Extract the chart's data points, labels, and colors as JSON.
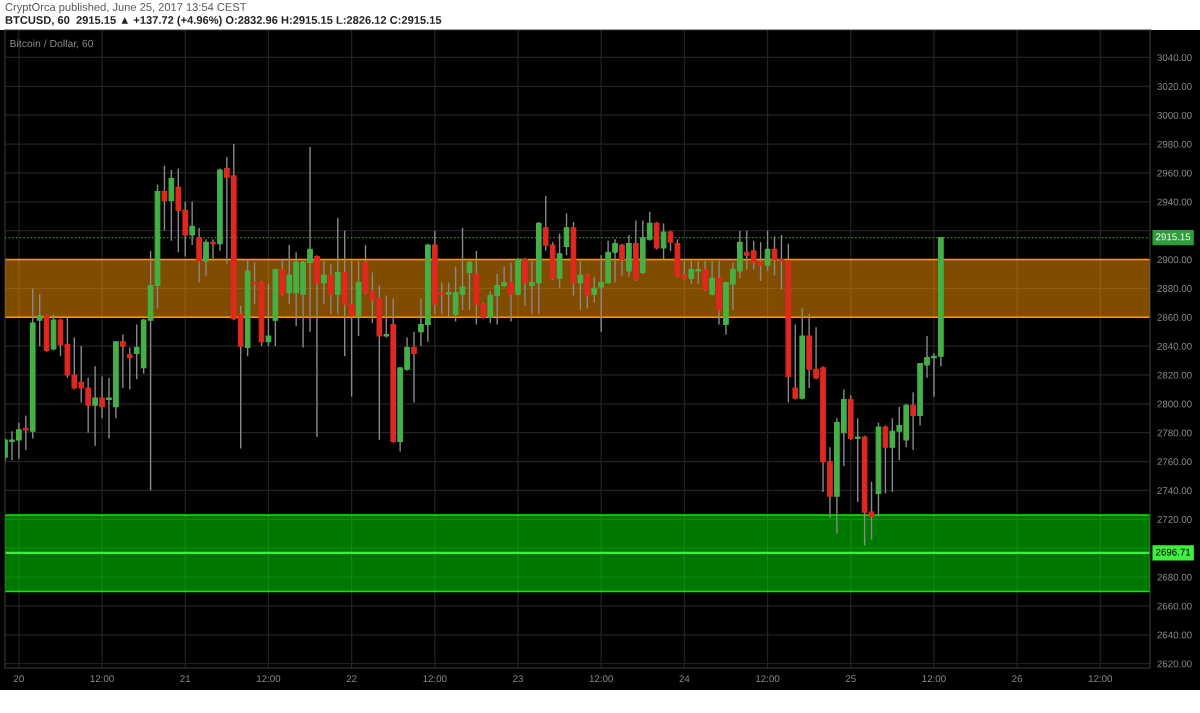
{
  "chart_data": {
    "type": "candlestick",
    "title": "Bitcoin / Dollar, 60",
    "subtitle": "BTCUSD, 60  2915.15 ▲ +137.72 (+4.96%) O:2832.96 H:2915.15 L:2826.12 C:2915.15",
    "annotations": [
      "CryptOrca published, June 25, 2017 13:54 CEST"
    ],
    "x": [
      "2017-06-19T22:00",
      "2017-06-19T23:00",
      "2017-06-20T00:00",
      "2017-06-20T01:00",
      "2017-06-20T02:00",
      "2017-06-20T03:00",
      "2017-06-20T04:00",
      "2017-06-20T05:00",
      "2017-06-20T06:00",
      "2017-06-20T07:00",
      "2017-06-20T08:00",
      "2017-06-20T09:00",
      "2017-06-20T10:00",
      "2017-06-20T11:00",
      "2017-06-20T12:00",
      "2017-06-20T13:00",
      "2017-06-20T14:00",
      "2017-06-20T15:00",
      "2017-06-20T16:00",
      "2017-06-20T17:00",
      "2017-06-20T18:00",
      "2017-06-20T19:00",
      "2017-06-20T20:00",
      "2017-06-20T21:00",
      "2017-06-20T22:00",
      "2017-06-20T23:00",
      "2017-06-21T00:00",
      "2017-06-21T01:00",
      "2017-06-21T02:00",
      "2017-06-21T03:00",
      "2017-06-21T04:00",
      "2017-06-21T05:00",
      "2017-06-21T06:00",
      "2017-06-21T07:00",
      "2017-06-21T08:00",
      "2017-06-21T09:00",
      "2017-06-21T10:00",
      "2017-06-21T11:00",
      "2017-06-21T12:00",
      "2017-06-21T13:00",
      "2017-06-21T14:00",
      "2017-06-21T15:00",
      "2017-06-21T16:00",
      "2017-06-21T17:00",
      "2017-06-21T18:00",
      "2017-06-21T19:00",
      "2017-06-21T20:00",
      "2017-06-21T21:00",
      "2017-06-21T22:00",
      "2017-06-21T23:00",
      "2017-06-22T00:00",
      "2017-06-22T01:00",
      "2017-06-22T02:00",
      "2017-06-22T03:00",
      "2017-06-22T04:00",
      "2017-06-22T05:00",
      "2017-06-22T06:00",
      "2017-06-22T07:00",
      "2017-06-22T08:00",
      "2017-06-22T09:00",
      "2017-06-22T10:00",
      "2017-06-22T11:00",
      "2017-06-22T12:00",
      "2017-06-22T13:00",
      "2017-06-22T14:00",
      "2017-06-22T15:00",
      "2017-06-22T16:00",
      "2017-06-22T17:00",
      "2017-06-22T18:00",
      "2017-06-22T19:00",
      "2017-06-22T20:00",
      "2017-06-22T21:00",
      "2017-06-22T22:00",
      "2017-06-22T23:00",
      "2017-06-23T00:00",
      "2017-06-23T01:00",
      "2017-06-23T02:00",
      "2017-06-23T03:00",
      "2017-06-23T04:00",
      "2017-06-23T05:00",
      "2017-06-23T06:00",
      "2017-06-23T07:00",
      "2017-06-23T08:00",
      "2017-06-23T09:00",
      "2017-06-23T10:00",
      "2017-06-23T11:00",
      "2017-06-23T12:00",
      "2017-06-23T13:00",
      "2017-06-23T14:00",
      "2017-06-23T15:00",
      "2017-06-23T16:00",
      "2017-06-23T17:00",
      "2017-06-23T18:00",
      "2017-06-23T19:00",
      "2017-06-23T20:00",
      "2017-06-23T21:00",
      "2017-06-23T22:00",
      "2017-06-23T23:00",
      "2017-06-24T00:00",
      "2017-06-24T01:00",
      "2017-06-24T02:00",
      "2017-06-24T03:00",
      "2017-06-24T04:00",
      "2017-06-24T05:00",
      "2017-06-24T06:00",
      "2017-06-24T07:00",
      "2017-06-24T08:00",
      "2017-06-24T09:00",
      "2017-06-24T10:00",
      "2017-06-24T11:00",
      "2017-06-24T12:00",
      "2017-06-24T13:00",
      "2017-06-24T14:00",
      "2017-06-24T15:00",
      "2017-06-24T16:00",
      "2017-06-24T17:00",
      "2017-06-24T18:00",
      "2017-06-24T19:00",
      "2017-06-24T20:00",
      "2017-06-24T21:00",
      "2017-06-24T22:00",
      "2017-06-24T23:00",
      "2017-06-25T00:00",
      "2017-06-25T01:00",
      "2017-06-25T02:00",
      "2017-06-25T03:00",
      "2017-06-25T04:00",
      "2017-06-25T05:00",
      "2017-06-25T06:00",
      "2017-06-25T07:00",
      "2017-06-25T08:00",
      "2017-06-25T09:00",
      "2017-06-25T10:00",
      "2017-06-25T11:00",
      "2017-06-25T12:00",
      "2017-06-25T13:00"
    ],
    "ohlc": [
      [
        2763,
        2776,
        2760,
        2775
      ],
      [
        2774,
        2781,
        2761,
        2775
      ],
      [
        2775,
        2787,
        2762,
        2782
      ],
      [
        2783,
        2792,
        2768,
        2782
      ],
      [
        2781,
        2880,
        2776,
        2856
      ],
      [
        2858,
        2876,
        2840,
        2861
      ],
      [
        2861,
        2862,
        2836,
        2837
      ],
      [
        2838,
        2862,
        2837,
        2858
      ],
      [
        2858,
        2859,
        2833,
        2841
      ],
      [
        2841,
        2860,
        2818,
        2820
      ],
      [
        2820,
        2846,
        2810,
        2811
      ],
      [
        2815,
        2840,
        2801,
        2811
      ],
      [
        2811,
        2818,
        2780,
        2799
      ],
      [
        2799,
        2826,
        2771,
        2804
      ],
      [
        2804,
        2819,
        2790,
        2798
      ],
      [
        2803,
        2818,
        2776,
        2804
      ],
      [
        2798,
        2843,
        2790,
        2843
      ],
      [
        2843,
        2848,
        2811,
        2840
      ],
      [
        2834,
        2839,
        2810,
        2832
      ],
      [
        2835,
        2855,
        2817,
        2839
      ],
      [
        2825,
        2859,
        2821,
        2858
      ],
      [
        2858,
        2906,
        2740,
        2882
      ],
      [
        2882,
        2952,
        2866,
        2947
      ],
      [
        2947,
        2965,
        2920,
        2941
      ],
      [
        2941,
        2962,
        2913,
        2956
      ],
      [
        2950,
        2963,
        2905,
        2934
      ],
      [
        2934,
        2940,
        2902,
        2917
      ],
      [
        2917,
        2940,
        2910,
        2923
      ],
      [
        2915,
        2922,
        2884,
        2899
      ],
      [
        2899,
        2914,
        2889,
        2912
      ],
      [
        2912,
        2914,
        2899,
        2911
      ],
      [
        2911,
        2963,
        2906,
        2962
      ],
      [
        2963,
        2971,
        2897,
        2957
      ],
      [
        2958,
        2980,
        2858,
        2859
      ],
      [
        2862,
        2868,
        2769,
        2840
      ],
      [
        2839,
        2900,
        2833,
        2892
      ],
      [
        2884,
        2898,
        2869,
        2883
      ],
      [
        2884,
        2885,
        2840,
        2843
      ],
      [
        2843,
        2883,
        2840,
        2847
      ],
      [
        2858,
        2893,
        2840,
        2893
      ],
      [
        2893,
        2900,
        2875,
        2876
      ],
      [
        2877,
        2910,
        2869,
        2889
      ],
      [
        2877,
        2905,
        2854,
        2898
      ],
      [
        2876,
        2899,
        2839,
        2898
      ],
      [
        2898,
        2978,
        2850,
        2907
      ],
      [
        2902,
        2903,
        2777,
        2884
      ],
      [
        2884,
        2899,
        2869,
        2889
      ],
      [
        2889,
        2897,
        2862,
        2876
      ],
      [
        2876,
        2929,
        2862,
        2891
      ],
      [
        2891,
        2920,
        2833,
        2869
      ],
      [
        2869,
        2899,
        2805,
        2861
      ],
      [
        2861,
        2899,
        2847,
        2884
      ],
      [
        2898,
        2910,
        2876,
        2877
      ],
      [
        2878,
        2891,
        2856,
        2872
      ],
      [
        2873,
        2882,
        2775,
        2847
      ],
      [
        2847,
        2875,
        2846,
        2848
      ],
      [
        2855,
        2873,
        2773,
        2774
      ],
      [
        2774,
        2825,
        2767,
        2825
      ],
      [
        2824,
        2846,
        2823,
        2839
      ],
      [
        2839,
        2850,
        2801,
        2835
      ],
      [
        2850,
        2873,
        2840,
        2855
      ],
      [
        2855,
        2911,
        2843,
        2910
      ],
      [
        2910,
        2920,
        2862,
        2869
      ],
      [
        2877,
        2884,
        2862,
        2876
      ],
      [
        2876,
        2884,
        2860,
        2877
      ],
      [
        2862,
        2895,
        2857,
        2877
      ],
      [
        2876,
        2922,
        2865,
        2881
      ],
      [
        2891,
        2899,
        2865,
        2898
      ],
      [
        2890,
        2906,
        2855,
        2869
      ],
      [
        2869,
        2870,
        2859,
        2860
      ],
      [
        2860,
        2878,
        2856,
        2875
      ],
      [
        2875,
        2890,
        2855,
        2882
      ],
      [
        2882,
        2895,
        2881,
        2884
      ],
      [
        2884,
        2898,
        2857,
        2876
      ],
      [
        2876,
        2901,
        2875,
        2900
      ],
      [
        2900,
        2901,
        2868,
        2884
      ],
      [
        2882,
        2899,
        2862,
        2884
      ],
      [
        2884,
        2926,
        2862,
        2925
      ],
      [
        2922,
        2944,
        2906,
        2910
      ],
      [
        2910,
        2912,
        2886,
        2887
      ],
      [
        2887,
        2918,
        2880,
        2904
      ],
      [
        2909,
        2932,
        2903,
        2922
      ],
      [
        2922,
        2926,
        2875,
        2884
      ],
      [
        2884,
        2899,
        2865,
        2889
      ],
      [
        2889,
        2890,
        2866,
        2875
      ],
      [
        2876,
        2888,
        2870,
        2880
      ],
      [
        2881,
        2903,
        2850,
        2884
      ],
      [
        2884,
        2913,
        2883,
        2905
      ],
      [
        2905,
        2914,
        2884,
        2911
      ],
      [
        2910,
        2911,
        2889,
        2900
      ],
      [
        2892,
        2917,
        2888,
        2911
      ],
      [
        2911,
        2927,
        2885,
        2886
      ],
      [
        2891,
        2927,
        2890,
        2915
      ],
      [
        2914,
        2933,
        2913,
        2925
      ],
      [
        2925,
        2926,
        2907,
        2908
      ],
      [
        2908,
        2925,
        2900,
        2919
      ],
      [
        2919,
        2920,
        2906,
        2912
      ],
      [
        2911,
        2914,
        2888,
        2889
      ],
      [
        2889,
        2900,
        2886,
        2887
      ],
      [
        2887,
        2899,
        2883,
        2893
      ],
      [
        2892,
        2899,
        2883,
        2893
      ],
      [
        2893,
        2899,
        2878,
        2879
      ],
      [
        2876,
        2899,
        2875,
        2887
      ],
      [
        2887,
        2899,
        2855,
        2865
      ],
      [
        2855,
        2884,
        2848,
        2884
      ],
      [
        2883,
        2898,
        2865,
        2893
      ],
      [
        2892,
        2920,
        2887,
        2912
      ],
      [
        2905,
        2920,
        2893,
        2903
      ],
      [
        2906,
        2913,
        2893,
        2898
      ],
      [
        2898,
        2912,
        2885,
        2896
      ],
      [
        2896,
        2920,
        2892,
        2907
      ],
      [
        2907,
        2916,
        2889,
        2900
      ],
      [
        2900,
        2917,
        2879,
        2899
      ],
      [
        2899,
        2911,
        2801,
        2819
      ],
      [
        2811,
        2855,
        2803,
        2804
      ],
      [
        2804,
        2866,
        2803,
        2847
      ],
      [
        2847,
        2862,
        2811,
        2824
      ],
      [
        2824,
        2853,
        2817,
        2818
      ],
      [
        2825,
        2826,
        2739,
        2760
      ],
      [
        2760,
        2770,
        2721,
        2736
      ],
      [
        2736,
        2790,
        2710,
        2787
      ],
      [
        2780,
        2810,
        2757,
        2803
      ],
      [
        2803,
        2806,
        2775,
        2776
      ],
      [
        2776,
        2790,
        2732,
        2777
      ],
      [
        2777,
        2778,
        2702,
        2725
      ],
      [
        2725,
        2746,
        2706,
        2722
      ],
      [
        2738,
        2787,
        2722,
        2784
      ],
      [
        2784,
        2785,
        2738,
        2770
      ],
      [
        2770,
        2790,
        2739,
        2781
      ],
      [
        2781,
        2798,
        2761,
        2785
      ],
      [
        2775,
        2800,
        2770,
        2799
      ],
      [
        2799,
        2808,
        2768,
        2792
      ],
      [
        2792,
        2828,
        2785,
        2828
      ],
      [
        2827,
        2847,
        2818,
        2832
      ],
      [
        2832,
        2835,
        2805,
        2833
      ],
      [
        2832.96,
        2915.15,
        2826.12,
        2915.15
      ]
    ],
    "colors": [
      "#45b145",
      "#45b145",
      "#45b145",
      "#e0281f",
      "#45b145",
      "#45b145",
      "#e0281f",
      "#45b145",
      "#e0281f",
      "#e0281f",
      "#e0281f",
      "#e0281f",
      "#e0281f",
      "#45b145",
      "#e0281f",
      "#45b145",
      "#45b145",
      "#e0281f",
      "#e0281f",
      "#45b145",
      "#45b145",
      "#45b145",
      "#45b145",
      "#e0281f",
      "#45b145",
      "#e0281f",
      "#e0281f",
      "#45b145",
      "#e0281f",
      "#45b145",
      "#e0281f",
      "#45b145",
      "#e0281f",
      "#e0281f",
      "#e0281f",
      "#45b145",
      "#e0281f",
      "#e0281f",
      "#45b145",
      "#45b145",
      "#e0281f",
      "#45b145",
      "#45b145",
      "#45b145",
      "#45b145",
      "#e0281f",
      "#45b145",
      "#e0281f",
      "#45b145",
      "#e0281f",
      "#e0281f",
      "#45b145",
      "#e0281f",
      "#e0281f",
      "#e0281f",
      "#45b145",
      "#e0281f",
      "#45b145",
      "#45b145",
      "#e0281f",
      "#45b145",
      "#45b145",
      "#e0281f",
      "#e0281f",
      "#45b145",
      "#45b145",
      "#45b145",
      "#45b145",
      "#e0281f",
      "#e0281f",
      "#45b145",
      "#45b145",
      "#45b145",
      "#e0281f",
      "#45b145",
      "#e0281f",
      "#45b145",
      "#45b145",
      "#e0281f",
      "#e0281f",
      "#45b145",
      "#45b145",
      "#e0281f",
      "#45b145",
      "#e0281f",
      "#45b145",
      "#45b145",
      "#45b145",
      "#45b145",
      "#e0281f",
      "#45b145",
      "#e0281f",
      "#45b145",
      "#45b145",
      "#e0281f",
      "#45b145",
      "#e0281f",
      "#e0281f",
      "#e0281f",
      "#45b145",
      "#45b145",
      "#e0281f",
      "#45b145",
      "#e0281f",
      "#45b145",
      "#45b145",
      "#45b145",
      "#e0281f",
      "#e0281f",
      "#e0281f",
      "#45b145",
      "#e0281f",
      "#e0281f",
      "#e0281f",
      "#e0281f",
      "#45b145",
      "#e0281f",
      "#e0281f",
      "#e0281f",
      "#e0281f",
      "#45b145",
      "#45b145",
      "#e0281f",
      "#45b145",
      "#e0281f",
      "#e0281f",
      "#45b145",
      "#e0281f",
      "#45b145",
      "#45b145",
      "#45b145",
      "#e0281f",
      "#45b145",
      "#45b145",
      "#45b145",
      "#45b145"
    ],
    "xlim": [
      "2017-06-19T22:00",
      "2017-06-26T19:10"
    ],
    "xticks": [
      {
        "value": "2017-06-20T00:00",
        "label": "20"
      },
      {
        "value": "2017-06-20T12:00",
        "label": "12:00"
      },
      {
        "value": "2017-06-21T00:00",
        "label": "21"
      },
      {
        "value": "2017-06-21T12:00",
        "label": "12:00"
      },
      {
        "value": "2017-06-22T00:00",
        "label": "22"
      },
      {
        "value": "2017-06-22T12:00",
        "label": "12:00"
      },
      {
        "value": "2017-06-23T00:00",
        "label": "23"
      },
      {
        "value": "2017-06-23T12:00",
        "label": "12:00"
      },
      {
        "value": "2017-06-24T00:00",
        "label": "24"
      },
      {
        "value": "2017-06-24T12:00",
        "label": "12:00"
      },
      {
        "value": "2017-06-25T00:00",
        "label": "25"
      },
      {
        "value": "2017-06-25T12:00",
        "label": "12:00"
      },
      {
        "value": "2017-06-26T00:00",
        "label": "26"
      },
      {
        "value": "2017-06-26T12:00",
        "label": "12:00"
      }
    ],
    "ylim": [
      2617,
      3059
    ],
    "yticks": [
      {
        "value": 2620,
        "label": "2620.00"
      },
      {
        "value": 2640,
        "label": "2640.00"
      },
      {
        "value": 2660,
        "label": "2660.00"
      },
      {
        "value": 2680,
        "label": "2680.00"
      },
      {
        "value": 2700,
        "label": null
      },
      {
        "value": 2720,
        "label": "2720.00"
      },
      {
        "value": 2740,
        "label": "2740.00"
      },
      {
        "value": 2760,
        "label": "2760.00"
      },
      {
        "value": 2780,
        "label": "2780.00"
      },
      {
        "value": 2800,
        "label": "2800.00"
      },
      {
        "value": 2820,
        "label": "2820.00"
      },
      {
        "value": 2840,
        "label": "2840.00"
      },
      {
        "value": 2860,
        "label": "2860.00"
      },
      {
        "value": 2880,
        "label": "2880.00"
      },
      {
        "value": 2900,
        "label": "2900.00"
      },
      {
        "value": 2920,
        "label": null
      },
      {
        "value": 2940,
        "label": "2940.00"
      },
      {
        "value": 2960,
        "label": "2960.00"
      },
      {
        "value": 2980,
        "label": "2980.00"
      },
      {
        "value": 3000,
        "label": "3000.00"
      },
      {
        "value": 3020,
        "label": "3020.00"
      },
      {
        "value": 3040,
        "label": "3040.00"
      }
    ],
    "grid": true,
    "bands": [
      {
        "axis": "y",
        "from": 2860,
        "to": 2900,
        "color": "#ff9800"
      },
      {
        "axis": "y",
        "from": 2670,
        "to": 2723,
        "color": "#00f000"
      }
    ],
    "ref_lines": [
      {
        "axis": "y",
        "value": 2915.15,
        "label": "2915.15",
        "color": "#2f9e3a",
        "line_style": "dotted"
      },
      {
        "axis": "y",
        "value": 2696.71,
        "label": "2696.71",
        "color": "#3cf03c",
        "line_style": "solid"
      }
    ]
  }
}
